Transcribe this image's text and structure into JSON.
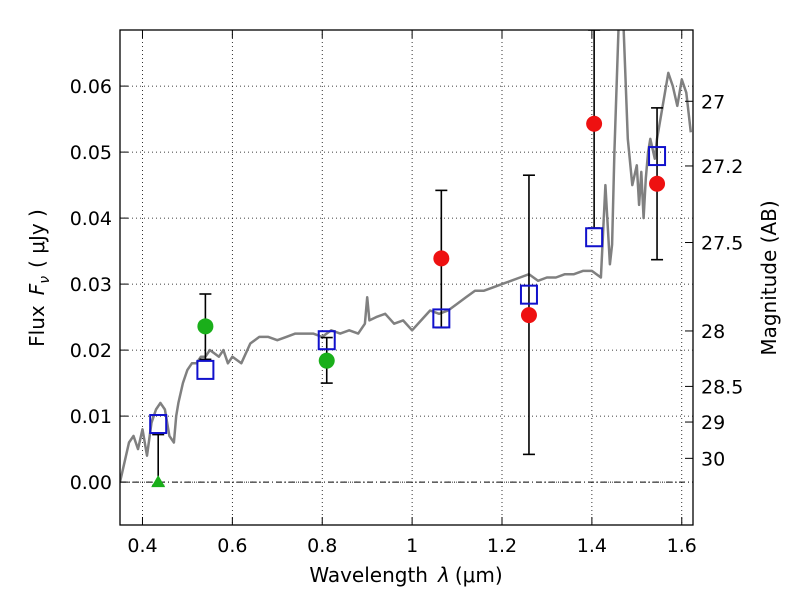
{
  "chart_data": {
    "type": "scatter",
    "xlabel_prefix": "Wavelength",
    "xlabel_symbol": "λ",
    "xlabel_unit": "(μm)",
    "ylabel_prefix": "Flux",
    "ylabel_symbol": "F",
    "ylabel_subscript": "ν",
    "ylabel_unit": "( μJy )",
    "y2label": "Magnitude (AB)",
    "xlim": [
      0.35,
      1.625
    ],
    "ylim": [
      -0.0065,
      0.0685
    ],
    "xticks": [
      0.4,
      0.6,
      0.8,
      1.0,
      1.2,
      1.4,
      1.6
    ],
    "xtick_labels": [
      "0.4",
      "0.6",
      "0.8",
      "1",
      "1.2",
      "1.4",
      "1.6"
    ],
    "yticks": [
      0.0,
      0.01,
      0.02,
      0.03,
      0.04,
      0.05,
      0.06
    ],
    "ytick_labels": [
      "0.00",
      "0.01",
      "0.02",
      "0.03",
      "0.04",
      "0.05",
      "0.06"
    ],
    "mag_ticks": [
      {
        "label": "27",
        "flux": 0.0577
      },
      {
        "label": "27.2",
        "flux": 0.0479
      },
      {
        "label": "27.5",
        "flux": 0.0363
      },
      {
        "label": "28",
        "flux": 0.0229
      },
      {
        "label": "28.5",
        "flux": 0.0145
      },
      {
        "label": "29",
        "flux": 0.0091
      },
      {
        "label": "30",
        "flux": 0.0036
      }
    ],
    "grid": true,
    "colors": {
      "model": "#808080",
      "green": "#1aaf1a",
      "red": "#ee1111",
      "blue": "#1111cc",
      "errorbar": "#000000",
      "zeroline": "#000000"
    },
    "model_sed": {
      "name": "model spectrum",
      "x": [
        0.35,
        0.36,
        0.37,
        0.38,
        0.39,
        0.4,
        0.41,
        0.42,
        0.43,
        0.44,
        0.45,
        0.46,
        0.47,
        0.475,
        0.48,
        0.49,
        0.5,
        0.51,
        0.52,
        0.53,
        0.54,
        0.55,
        0.56,
        0.57,
        0.58,
        0.59,
        0.6,
        0.62,
        0.64,
        0.66,
        0.68,
        0.7,
        0.72,
        0.74,
        0.76,
        0.78,
        0.8,
        0.82,
        0.84,
        0.86,
        0.88,
        0.895,
        0.9,
        0.905,
        0.92,
        0.94,
        0.96,
        0.98,
        1.0,
        1.02,
        1.04,
        1.06,
        1.08,
        1.1,
        1.12,
        1.14,
        1.16,
        1.18,
        1.2,
        1.22,
        1.24,
        1.26,
        1.28,
        1.3,
        1.32,
        1.34,
        1.36,
        1.38,
        1.4,
        1.42,
        1.43,
        1.44,
        1.445,
        1.45,
        1.46,
        1.47,
        1.48,
        1.49,
        1.5,
        1.505,
        1.51,
        1.515,
        1.52,
        1.525,
        1.53,
        1.54,
        1.545,
        1.55,
        1.56,
        1.57,
        1.58,
        1.59,
        1.6,
        1.61,
        1.62
      ],
      "y": [
        0.0,
        0.003,
        0.006,
        0.007,
        0.005,
        0.008,
        0.004,
        0.009,
        0.011,
        0.012,
        0.011,
        0.007,
        0.006,
        0.01,
        0.012,
        0.015,
        0.017,
        0.018,
        0.018,
        0.019,
        0.019,
        0.02,
        0.0195,
        0.019,
        0.02,
        0.018,
        0.019,
        0.018,
        0.021,
        0.022,
        0.022,
        0.0215,
        0.022,
        0.0225,
        0.0225,
        0.0225,
        0.022,
        0.023,
        0.0225,
        0.023,
        0.0225,
        0.024,
        0.028,
        0.0245,
        0.025,
        0.0255,
        0.024,
        0.0245,
        0.023,
        0.0245,
        0.026,
        0.0255,
        0.026,
        0.027,
        0.028,
        0.029,
        0.029,
        0.0295,
        0.03,
        0.0305,
        0.031,
        0.0315,
        0.0305,
        0.031,
        0.031,
        0.0315,
        0.0315,
        0.032,
        0.032,
        0.031,
        0.045,
        0.033,
        0.036,
        0.05,
        0.07,
        0.07,
        0.052,
        0.045,
        0.048,
        0.042,
        0.047,
        0.04,
        0.046,
        0.05,
        0.052,
        0.049,
        0.052,
        0.054,
        0.058,
        0.062,
        0.06,
        0.057,
        0.061,
        0.059,
        0.053
      ],
      "smooth": [
        0.35,
        0.36,
        0.37,
        0.38,
        0.39,
        0.4,
        0.41,
        0.42,
        0.43
      ]
    },
    "green_points": {
      "name": "green detections",
      "x": [
        0.54,
        0.81
      ],
      "y": [
        0.0236,
        0.0184
      ],
      "err_low": [
        0.005,
        0.0034
      ],
      "err_high": [
        0.005,
        0.0035
      ]
    },
    "green_triangle": {
      "name": "upper-limit marker",
      "x": 0.435,
      "y": 0.0
    },
    "red_points": {
      "name": "red detections",
      "x": [
        1.065,
        1.26,
        1.405,
        1.545
      ],
      "y": [
        0.0339,
        0.0253,
        0.0543,
        0.0452
      ],
      "err_low": [
        0.0,
        0.0,
        0.0,
        0.0115
      ],
      "err_high": [
        0.0,
        0.0,
        0.0,
        0.0115
      ]
    },
    "blue_squares": {
      "name": "model photometry",
      "x": [
        0.435,
        0.54,
        0.81,
        1.065,
        1.26,
        1.405,
        1.545
      ],
      "y": [
        0.0088,
        0.017,
        0.0215,
        0.0248,
        0.0284,
        0.0371,
        0.0494
      ]
    },
    "errorbars": [
      {
        "x": 0.435,
        "low": -0.0005,
        "high": 0.0072
      },
      {
        "x": 0.54,
        "low": 0.0186,
        "high": 0.0285
      },
      {
        "x": 0.81,
        "low": 0.015,
        "high": 0.0219
      },
      {
        "x": 1.065,
        "low": 0.0234,
        "high": 0.0442
      },
      {
        "x": 1.26,
        "low": 0.0042,
        "high": 0.0465
      },
      {
        "x": 1.405,
        "low": 0.0385,
        "high": 0.0685
      },
      {
        "x": 1.545,
        "low": 0.0337,
        "high": 0.0567
      }
    ]
  }
}
